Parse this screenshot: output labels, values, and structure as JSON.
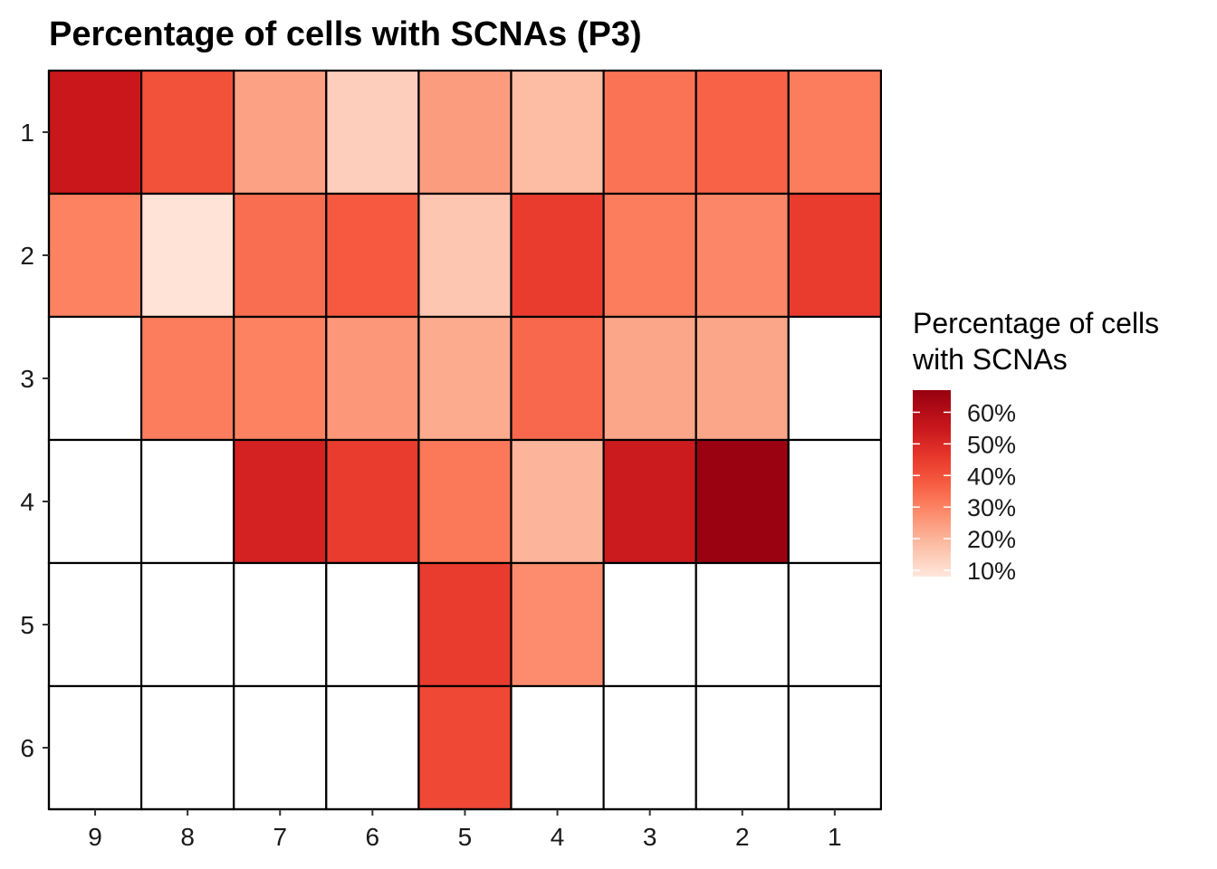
{
  "chart_data": {
    "type": "heatmap",
    "title": "Percentage of cells with SCNAs (P3)",
    "xlabel": "",
    "ylabel": "",
    "x_categories": [
      "9",
      "8",
      "7",
      "6",
      "5",
      "4",
      "3",
      "2",
      "1"
    ],
    "y_categories": [
      "1",
      "2",
      "3",
      "4",
      "5",
      "6"
    ],
    "cells": [
      {
        "x": "9",
        "y": "1",
        "value": 55
      },
      {
        "x": "8",
        "y": "1",
        "value": 40
      },
      {
        "x": "7",
        "y": "1",
        "value": 24
      },
      {
        "x": "6",
        "y": "1",
        "value": 14
      },
      {
        "x": "5",
        "y": "1",
        "value": 25
      },
      {
        "x": "4",
        "y": "1",
        "value": 18
      },
      {
        "x": "3",
        "y": "1",
        "value": 33
      },
      {
        "x": "2",
        "y": "1",
        "value": 36
      },
      {
        "x": "1",
        "y": "1",
        "value": 31
      },
      {
        "x": "9",
        "y": "2",
        "value": 30
      },
      {
        "x": "8",
        "y": "2",
        "value": 9
      },
      {
        "x": "7",
        "y": "2",
        "value": 34
      },
      {
        "x": "6",
        "y": "2",
        "value": 38
      },
      {
        "x": "5",
        "y": "2",
        "value": 16
      },
      {
        "x": "4",
        "y": "2",
        "value": 45
      },
      {
        "x": "3",
        "y": "2",
        "value": 31
      },
      {
        "x": "2",
        "y": "2",
        "value": 29
      },
      {
        "x": "1",
        "y": "2",
        "value": 45
      },
      {
        "x": "8",
        "y": "3",
        "value": 31
      },
      {
        "x": "7",
        "y": "3",
        "value": 30
      },
      {
        "x": "6",
        "y": "3",
        "value": 26
      },
      {
        "x": "5",
        "y": "3",
        "value": 22
      },
      {
        "x": "4",
        "y": "3",
        "value": 35
      },
      {
        "x": "3",
        "y": "3",
        "value": 23
      },
      {
        "x": "2",
        "y": "3",
        "value": 23
      },
      {
        "x": "7",
        "y": "4",
        "value": 52
      },
      {
        "x": "6",
        "y": "4",
        "value": 45
      },
      {
        "x": "5",
        "y": "4",
        "value": 32
      },
      {
        "x": "4",
        "y": "4",
        "value": 20
      },
      {
        "x": "3",
        "y": "4",
        "value": 54
      },
      {
        "x": "2",
        "y": "4",
        "value": 66
      },
      {
        "x": "5",
        "y": "5",
        "value": 45
      },
      {
        "x": "4",
        "y": "5",
        "value": 28
      },
      {
        "x": "5",
        "y": "6",
        "value": 42
      }
    ],
    "empty_cell_color": "#ffffff",
    "grid": true,
    "legend": {
      "title_lines": [
        "Percentage of cells",
        "with SCNAs"
      ],
      "placement": "right",
      "breaks": [
        {
          "value": 60,
          "label": "60%"
        },
        {
          "value": 50,
          "label": "50%"
        },
        {
          "value": 40,
          "label": "40%"
        },
        {
          "value": 30,
          "label": "30%"
        },
        {
          "value": 20,
          "label": "20%"
        },
        {
          "value": 10,
          "label": "10%"
        }
      ],
      "range": [
        8,
        67
      ]
    },
    "color_scale": {
      "low_color": "#fee7dc",
      "stops": [
        {
          "value": 8,
          "color": "#fee7dc"
        },
        {
          "value": 15,
          "color": "#fdcab5"
        },
        {
          "value": 22,
          "color": "#fcab8f"
        },
        {
          "value": 30,
          "color": "#fc8262"
        },
        {
          "value": 38,
          "color": "#f6593f"
        },
        {
          "value": 46,
          "color": "#e7372b"
        },
        {
          "value": 55,
          "color": "#c9171c"
        },
        {
          "value": 67,
          "color": "#970010"
        }
      ]
    }
  }
}
